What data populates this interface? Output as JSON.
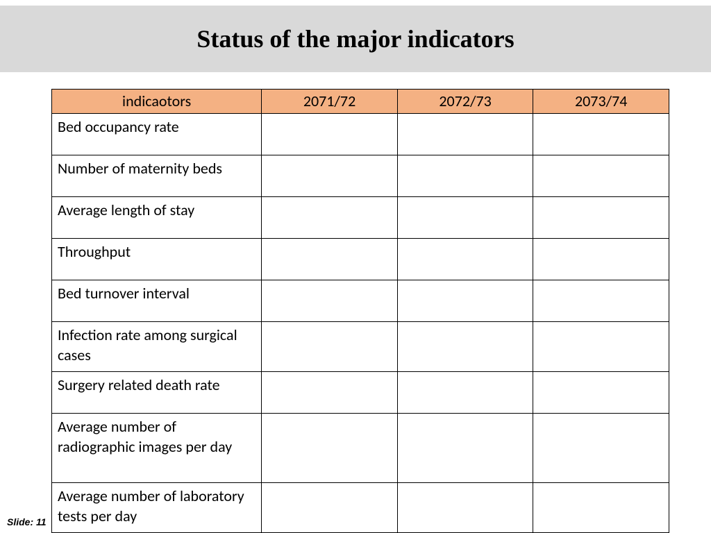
{
  "title": "Status of the major indicators",
  "table": {
    "type": "table",
    "header_bg": "#f4b183",
    "border_color": "#000000",
    "columns": [
      "indicaotors",
      "2071/72",
      "2072/73",
      "2073/74"
    ],
    "col_widths_pct": [
      34,
      22,
      22,
      22
    ],
    "header_align": [
      "center",
      "center",
      "center",
      "center"
    ],
    "body_align": [
      "left",
      "left",
      "left",
      "left"
    ],
    "font_size": 22,
    "rows": [
      {
        "cells": [
          "Bed occupancy rate",
          "",
          "",
          ""
        ],
        "lines": 1
      },
      {
        "cells": [
          "Number of maternity beds",
          "",
          "",
          ""
        ],
        "lines": 1
      },
      {
        "cells": [
          "Average length of stay",
          "",
          "",
          ""
        ],
        "lines": 1
      },
      {
        "cells": [
          "Throughput",
          "",
          "",
          ""
        ],
        "lines": 1
      },
      {
        "cells": [
          "Bed turnover interval",
          "",
          "",
          ""
        ],
        "lines": 1
      },
      {
        "cells": [
          "Infection rate among surgical cases",
          "",
          "",
          ""
        ],
        "lines": 2
      },
      {
        "cells": [
          "Surgery related death rate",
          "",
          "",
          ""
        ],
        "lines": 1
      },
      {
        "cells": [
          "Average number of radiographic images per day",
          "",
          "",
          ""
        ],
        "lines": 3
      },
      {
        "cells": [
          "Average number of laboratory tests per day",
          "",
          "",
          ""
        ],
        "lines": 2
      }
    ]
  },
  "footer": {
    "label": "Slide:",
    "number": "11"
  },
  "colors": {
    "title_bar_bg": "#d9d9d9",
    "page_bg": "#ffffff",
    "text": "#000000"
  },
  "typography": {
    "title_font": "Times New Roman",
    "title_size": 36,
    "title_weight": "bold",
    "body_font": "Calibri",
    "footer_font": "Arial",
    "footer_size": 14,
    "footer_style": "italic bold"
  }
}
